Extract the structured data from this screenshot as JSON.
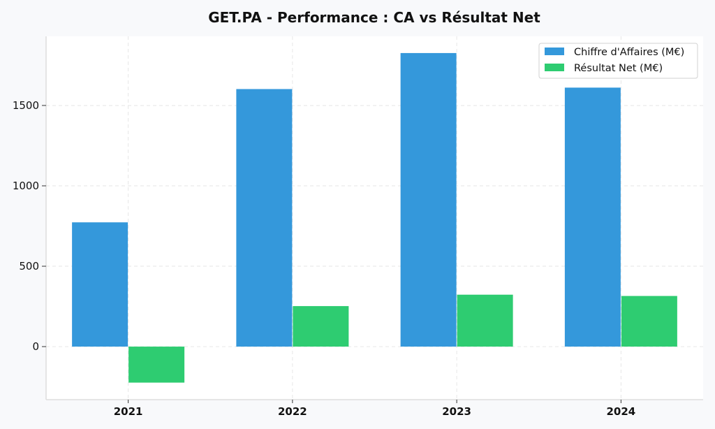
{
  "chart_data": {
    "type": "bar",
    "title": "GET.PA - Performance : CA vs Résultat Net",
    "xlabel": "",
    "ylabel": "",
    "categories": [
      "2021",
      "2022",
      "2023",
      "2024"
    ],
    "series": [
      {
        "name": "Chiffre d'Affaires (M€)",
        "color": "#3498db",
        "values": [
          773,
          1602,
          1826,
          1611
        ]
      },
      {
        "name": "Résultat Net (M€)",
        "color": "#2ecc71",
        "values": [
          -224,
          252,
          323,
          315
        ]
      }
    ],
    "ylim": [
      -330,
      1930
    ],
    "yticks": [
      0,
      500,
      1000,
      1500
    ],
    "grid": true,
    "legend_position": "top-right"
  }
}
